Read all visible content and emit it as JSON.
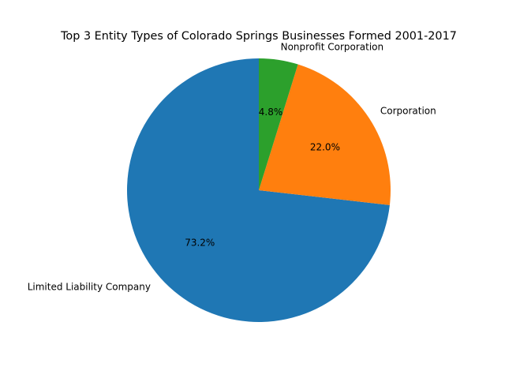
{
  "chart_data": {
    "type": "pie",
    "title": "Top 3 Entity Types of Colorado Springs Businesses Formed 2001-2017",
    "start_angle_deg": 90,
    "direction": "counterclockwise",
    "slices": [
      {
        "label": "Limited Liability Company",
        "value": 73.2,
        "pct_label": "73.2%",
        "color": "#1f77b4"
      },
      {
        "label": "Corporation",
        "value": 22.0,
        "pct_label": "22.0%",
        "color": "#ff7f0e"
      },
      {
        "label": "Nonprofit Corporation",
        "value": 4.8,
        "pct_label": "4.8%",
        "color": "#2ca02c"
      }
    ]
  }
}
